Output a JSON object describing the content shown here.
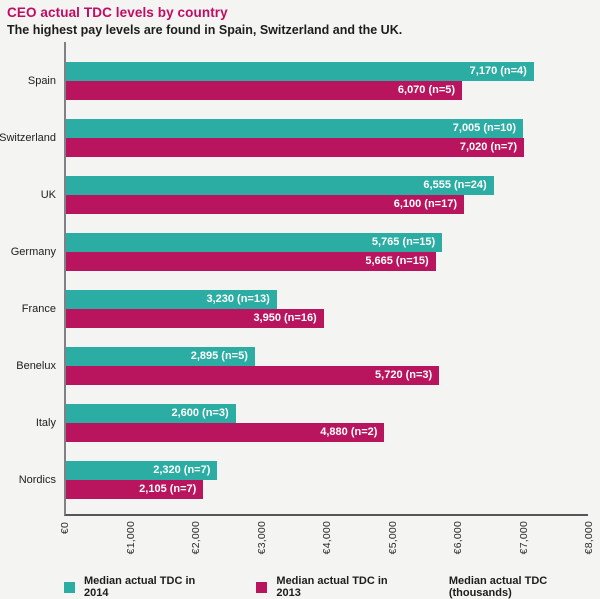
{
  "header": {
    "title": "CEO actual TDC levels by country",
    "subtitle": "The highest pay levels are found in Spain, Switzerland and the UK."
  },
  "colors": {
    "title": "#c20b63",
    "teal_2014": "#2bada4",
    "magenta_2013": "#b8155e",
    "background": "#f4f4f2",
    "bar_label_text": "#ffffff"
  },
  "chart_data": {
    "type": "bar",
    "orientation": "horizontal",
    "title": "CEO actual TDC levels by country",
    "subtitle": "The highest pay levels are found in Spain, Switzerland and the UK.",
    "categories": [
      "Spain",
      "Switzerland",
      "UK",
      "Germany",
      "France",
      "Benelux",
      "Italy",
      "Nordics"
    ],
    "series": [
      {
        "name": "Median actual TDC in 2014",
        "key": "2014",
        "color": "#2bada4",
        "values": [
          7170,
          7005,
          6555,
          5765,
          3230,
          2895,
          2600,
          2320
        ],
        "n_counts": [
          4,
          10,
          24,
          15,
          13,
          5,
          3,
          7
        ],
        "labels": [
          "7,170 (n=4)",
          "7,005 (n=10)",
          "6,555 (n=24)",
          "5,765 (n=15)",
          "3,230 (n=13)",
          "2,895 (n=5)",
          "2,600 (n=3)",
          "2,320 (n=7)"
        ]
      },
      {
        "name": "Median actual TDC in 2013",
        "key": "2013",
        "color": "#b8155e",
        "values": [
          6070,
          7020,
          6100,
          5665,
          3950,
          5720,
          4880,
          2105
        ],
        "n_counts": [
          5,
          7,
          17,
          15,
          16,
          3,
          2,
          7
        ],
        "labels": [
          "6,070 (n=5)",
          "7,020 (n=7)",
          "6,100 (n=17)",
          "5,665 (n=15)",
          "3,950 (n=16)",
          "5,720 (n=3)",
          "4,880 (n=2)",
          "2,105 (n=7)"
        ]
      }
    ],
    "xlim": [
      0,
      8000
    ],
    "x_ticks": [
      "€0",
      "€1,000",
      "€2,000",
      "€3,000",
      "€4,000",
      "€5,000",
      "€6,000",
      "€7,000",
      "€8,000"
    ],
    "axis_note": "Median actual TDC (thousands)",
    "grid": false,
    "legend_position": "bottom"
  }
}
